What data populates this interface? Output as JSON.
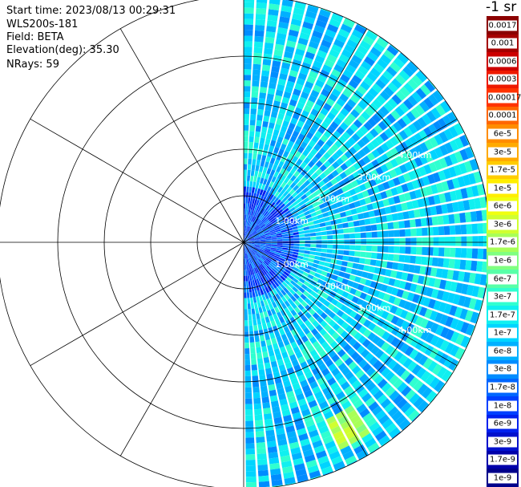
{
  "header": {
    "start_time": "Start time: 2023/08/13 00:29:31",
    "instrument": "WLS200s-181",
    "field": "Field: BETA",
    "elevation": "Elevation(deg): 35.30",
    "nrays": "NRays: 59"
  },
  "colorbar": {
    "unit": "-1 sr",
    "entries": [
      {
        "label": "0.0017",
        "color": "#8b0000"
      },
      {
        "label": "0.001",
        "color": "#a50000"
      },
      {
        "label": "0.0006",
        "color": "#cc0000"
      },
      {
        "label": "0.0003",
        "color": "#ee1a00"
      },
      {
        "label": "0.00017",
        "color": "#ff3300"
      },
      {
        "label": "0.0001",
        "color": "#ff6600"
      },
      {
        "label": "6e-5",
        "color": "#ff8c00"
      },
      {
        "label": "3e-5",
        "color": "#ffaa00"
      },
      {
        "label": "1.7e-5",
        "color": "#ffcc00"
      },
      {
        "label": "1e-5",
        "color": "#ffee00"
      },
      {
        "label": "6e-6",
        "color": "#f0ff10"
      },
      {
        "label": "3e-6",
        "color": "#d0ff30"
      },
      {
        "label": "1.7e-6",
        "color": "#a8ff58"
      },
      {
        "label": "1e-6",
        "color": "#80ff80"
      },
      {
        "label": "6e-7",
        "color": "#58ffa8"
      },
      {
        "label": "3e-7",
        "color": "#30ffd0"
      },
      {
        "label": "1.7e-7",
        "color": "#10f0f0"
      },
      {
        "label": "1e-7",
        "color": "#00d4ff"
      },
      {
        "label": "6e-8",
        "color": "#00b0ff"
      },
      {
        "label": "3e-8",
        "color": "#008cff"
      },
      {
        "label": "1.7e-8",
        "color": "#0066ff"
      },
      {
        "label": "1e-8",
        "color": "#0040ff"
      },
      {
        "label": "6e-9",
        "color": "#0020ee"
      },
      {
        "label": "3e-9",
        "color": "#0010cc"
      },
      {
        "label": "1.7e-9",
        "color": "#0000aa"
      },
      {
        "label": "1e-9",
        "color": "#00008b"
      }
    ]
  },
  "chart_data": {
    "type": "heatmap",
    "projection": "polar-ppi",
    "field": "BETA",
    "elevation_deg": 35.3,
    "nrays": 59,
    "azimuth_coverage_deg": [
      0,
      180
    ],
    "range_rings_km": [
      1,
      2,
      3,
      4
    ],
    "ring_labels": [
      "1.00km",
      "2.00km",
      "3.00km",
      "4.00km"
    ],
    "max_range_km": 5.3,
    "spoke_step_deg": 30,
    "value_scale": "log",
    "value_range": [
      1e-09,
      0.0017
    ],
    "typical_beta": 1e-07,
    "high_feature": {
      "azimuth_deg": [
        145,
        155
      ],
      "range_km": [
        4.2,
        4.9
      ],
      "beta": 1.7e-06
    }
  }
}
